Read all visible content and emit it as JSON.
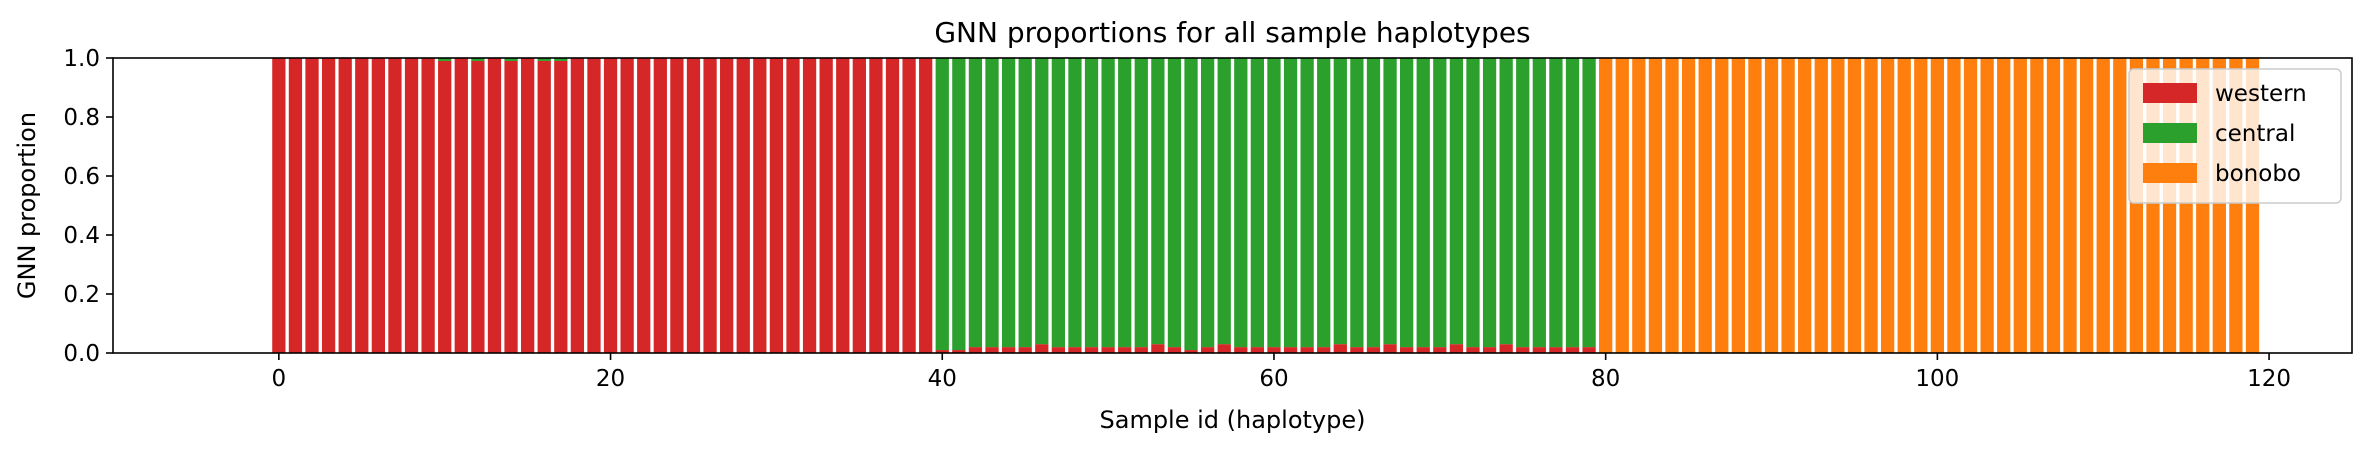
{
  "chart_data": {
    "type": "bar",
    "stacked": true,
    "title": "GNN proportions for all sample haplotypes",
    "xlabel": "Sample id (haplotype)",
    "ylabel": "GNN proportion",
    "xlim": [
      -10,
      125
    ],
    "ylim": [
      0,
      1
    ],
    "x_ticks": [
      0,
      20,
      40,
      60,
      80,
      100,
      120
    ],
    "x_tick_labels": [
      "0",
      "20",
      "40",
      "60",
      "80",
      "100",
      "120"
    ],
    "y_ticks": [
      0,
      0.2,
      0.4,
      0.6,
      0.8,
      1.0
    ],
    "y_tick_labels": [
      "0.0",
      "0.2",
      "0.4",
      "0.6",
      "0.8",
      "1.0"
    ],
    "grid": false,
    "legend_position": "top-right",
    "x": [
      0,
      1,
      2,
      3,
      4,
      5,
      6,
      7,
      8,
      9,
      10,
      11,
      12,
      13,
      14,
      15,
      16,
      17,
      18,
      19,
      20,
      21,
      22,
      23,
      24,
      25,
      26,
      27,
      28,
      29,
      30,
      31,
      32,
      33,
      34,
      35,
      36,
      37,
      38,
      39,
      40,
      41,
      42,
      43,
      44,
      45,
      46,
      47,
      48,
      49,
      50,
      51,
      52,
      53,
      54,
      55,
      56,
      57,
      58,
      59,
      60,
      61,
      62,
      63,
      64,
      65,
      66,
      67,
      68,
      69,
      70,
      71,
      72,
      73,
      74,
      75,
      76,
      77,
      78,
      79,
      80,
      81,
      82,
      83,
      84,
      85,
      86,
      87,
      88,
      89,
      90,
      91,
      92,
      93,
      94,
      95,
      96,
      97,
      98,
      99,
      100,
      101,
      102,
      103,
      104,
      105,
      106,
      107,
      108,
      109,
      110,
      111,
      112,
      113,
      114,
      115,
      116,
      117,
      118,
      119
    ],
    "series": [
      {
        "name": "western",
        "color": "#d62728",
        "values": [
          1,
          1,
          1,
          1,
          1,
          1,
          1,
          1,
          1,
          1,
          0.99,
          1,
          0.99,
          1,
          0.99,
          1,
          0.99,
          0.99,
          1,
          1,
          1,
          1,
          1,
          1,
          1,
          1,
          1,
          1,
          1,
          1,
          1,
          1,
          1,
          1,
          1,
          1,
          1,
          1,
          1,
          1,
          0.01,
          0.01,
          0.02,
          0.02,
          0.02,
          0.02,
          0.03,
          0.02,
          0.02,
          0.02,
          0.02,
          0.02,
          0.02,
          0.03,
          0.02,
          0.01,
          0.02,
          0.03,
          0.02,
          0.02,
          0.02,
          0.02,
          0.02,
          0.02,
          0.03,
          0.02,
          0.02,
          0.03,
          0.02,
          0.02,
          0.02,
          0.03,
          0.02,
          0.02,
          0.03,
          0.02,
          0.02,
          0.02,
          0.02,
          0.02,
          0,
          0,
          0,
          0,
          0,
          0,
          0,
          0,
          0,
          0,
          0,
          0,
          0,
          0,
          0,
          0,
          0,
          0,
          0,
          0,
          0,
          0,
          0,
          0,
          0,
          0,
          0,
          0,
          0,
          0,
          0,
          0,
          0,
          0,
          0,
          0,
          0,
          0,
          0,
          0
        ]
      },
      {
        "name": "central",
        "color": "#2ca02c",
        "values": [
          0,
          0,
          0,
          0,
          0,
          0,
          0,
          0,
          0,
          0,
          0.01,
          0,
          0.01,
          0,
          0.01,
          0,
          0.01,
          0.01,
          0,
          0,
          0,
          0,
          0,
          0,
          0,
          0,
          0,
          0,
          0,
          0,
          0,
          0,
          0,
          0,
          0,
          0,
          0,
          0,
          0,
          0,
          0.99,
          0.99,
          0.98,
          0.98,
          0.98,
          0.98,
          0.97,
          0.98,
          0.98,
          0.98,
          0.98,
          0.98,
          0.98,
          0.97,
          0.98,
          0.99,
          0.98,
          0.97,
          0.98,
          0.98,
          0.98,
          0.98,
          0.98,
          0.98,
          0.97,
          0.98,
          0.98,
          0.97,
          0.98,
          0.98,
          0.98,
          0.97,
          0.98,
          0.98,
          0.97,
          0.98,
          0.98,
          0.98,
          0.98,
          0.98,
          0,
          0,
          0,
          0,
          0,
          0,
          0,
          0,
          0,
          0,
          0,
          0,
          0,
          0,
          0,
          0,
          0,
          0,
          0,
          0,
          0,
          0,
          0,
          0,
          0,
          0,
          0,
          0,
          0,
          0,
          0,
          0,
          0,
          0,
          0,
          0,
          0,
          0,
          0,
          0
        ]
      },
      {
        "name": "bonobo",
        "color": "#ff7f0e",
        "values": [
          0,
          0,
          0,
          0,
          0,
          0,
          0,
          0,
          0,
          0,
          0,
          0,
          0,
          0,
          0,
          0,
          0,
          0,
          0,
          0,
          0,
          0,
          0,
          0,
          0,
          0,
          0,
          0,
          0,
          0,
          0,
          0,
          0,
          0,
          0,
          0,
          0,
          0,
          0,
          0,
          0,
          0,
          0,
          0,
          0,
          0,
          0,
          0,
          0,
          0,
          0,
          0,
          0,
          0,
          0,
          0,
          0,
          0,
          0,
          0,
          0,
          0,
          0,
          0,
          0,
          0,
          0,
          0,
          0,
          0,
          0,
          0,
          0,
          0,
          0,
          0,
          0,
          0,
          0,
          0,
          1,
          1,
          1,
          1,
          1,
          1,
          1,
          1,
          1,
          1,
          1,
          1,
          1,
          1,
          1,
          1,
          1,
          1,
          1,
          1,
          1,
          1,
          1,
          1,
          1,
          1,
          1,
          1,
          1,
          1,
          1,
          1,
          1,
          1,
          1,
          1,
          1,
          1,
          1,
          1
        ]
      }
    ]
  }
}
